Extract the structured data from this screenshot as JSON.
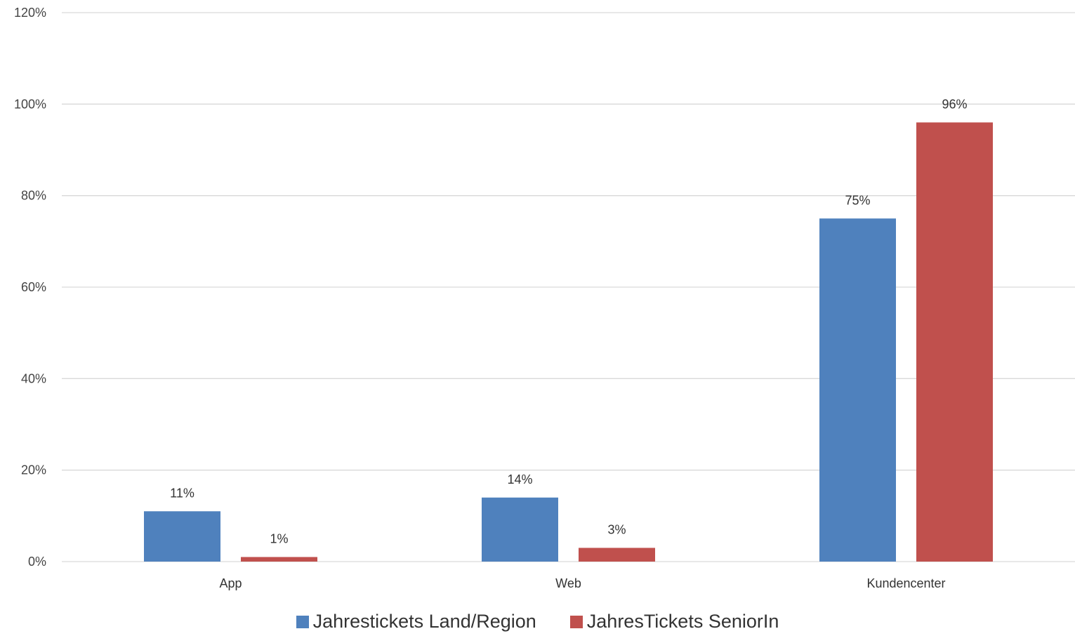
{
  "chart_data": {
    "type": "bar",
    "categories": [
      "App",
      "Web",
      "Kundencenter"
    ],
    "series": [
      {
        "name": "Jahrestickets Land/Region",
        "color": "#4F81BD",
        "values": [
          11,
          14,
          75
        ],
        "labels": [
          "11%",
          "14%",
          "75%"
        ]
      },
      {
        "name": "JahresTickets SeniorIn",
        "color": "#C0504D",
        "values": [
          1,
          3,
          96
        ],
        "labels": [
          "1%",
          "3%",
          "96%"
        ]
      }
    ],
    "y_ticks": [
      {
        "value": 0,
        "label": "0%"
      },
      {
        "value": 20,
        "label": "20%"
      },
      {
        "value": 40,
        "label": "40%"
      },
      {
        "value": 60,
        "label": "60%"
      },
      {
        "value": 80,
        "label": "80%"
      },
      {
        "value": 100,
        "label": "100%"
      },
      {
        "value": 120,
        "label": "120%"
      }
    ],
    "ylim": [
      0,
      120
    ],
    "grid": true,
    "legend_position": "bottom",
    "gridline_color": "#D9D9D9"
  }
}
